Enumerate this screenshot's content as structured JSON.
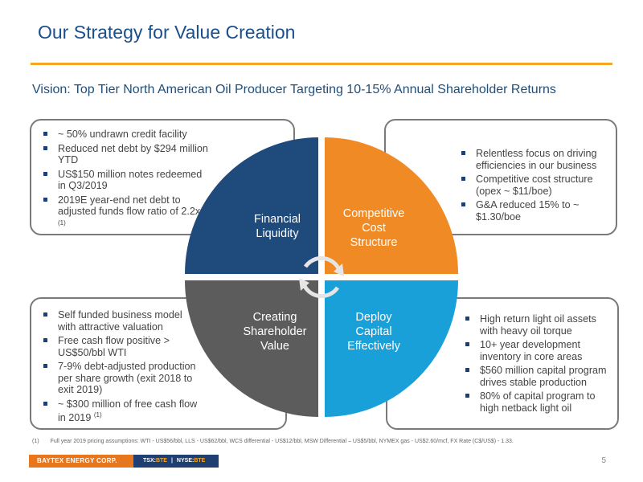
{
  "slide": {
    "title": "Our Strategy for Value Creation",
    "vision": "Vision: Top Tier North American Oil Producer Targeting 10-15% Annual Shareholder Returns",
    "page_number": "5"
  },
  "quadrants": {
    "top_left": {
      "label_line1": "Financial",
      "label_line2": "Liquidity",
      "color": "#1f4a7c",
      "bullets": [
        "~ 50% undrawn credit facility",
        "Reduced net debt by $294 million YTD",
        "US$150 million notes redeemed in Q3/2019",
        "2019E year-end net debt to adjusted funds flow ratio of 2.2x"
      ],
      "bullet4_footnote": "(1)"
    },
    "top_right": {
      "label_line1": "Competitive",
      "label_line2": "Cost",
      "label_line3": "Structure",
      "color": "#f08a24",
      "bullets": [
        "Relentless focus on driving efficiencies in our business",
        "Competitive cost structure (opex ~ $11/boe)",
        "G&A reduced 15% to ~ $1.30/boe"
      ]
    },
    "bottom_left": {
      "label_line1": "Creating",
      "label_line2": "Shareholder",
      "label_line3": "Value",
      "color": "#5c5c5c",
      "bullets": [
        "Self funded business model with attractive valuation",
        "Free cash flow positive > US$50/bbl WTI",
        "7-9% debt-adjusted production per share growth (exit 2018 to exit 2019)",
        "~ $300 million of free cash flow in 2019"
      ],
      "bullet4_footnote": "(1)"
    },
    "bottom_right": {
      "label_line1": "Deploy",
      "label_line2": "Capital",
      "label_line3": "Effectively",
      "color": "#1aa0d8",
      "bullets": [
        "High return light oil assets with heavy oil torque",
        "10+ year development inventory in core areas",
        "$560 million capital program drives stable production",
        "80% of capital program to high netback light oil"
      ]
    }
  },
  "footnote": {
    "number": "(1)",
    "text": "Full year 2019 pricing assumptions: WTI - US$56/bbl, LLS - US$62/bbl, WCS differential - US$12/bbl, MSW Differential – US$5/bbl, NYMEX gas - US$2.60/mcf, FX Rate (C$/US$) - 1.33."
  },
  "footer": {
    "brand": "BAYTEX ENERGY CORP.",
    "tsx": "TSX:",
    "tsx_ticker": "BTE",
    "nyse": "NYSE:",
    "nyse_ticker": "BTE"
  },
  "colors": {
    "title_blue": "#1a4f8b",
    "accent_orange": "#f5a623",
    "navy": "#1f3f73"
  }
}
